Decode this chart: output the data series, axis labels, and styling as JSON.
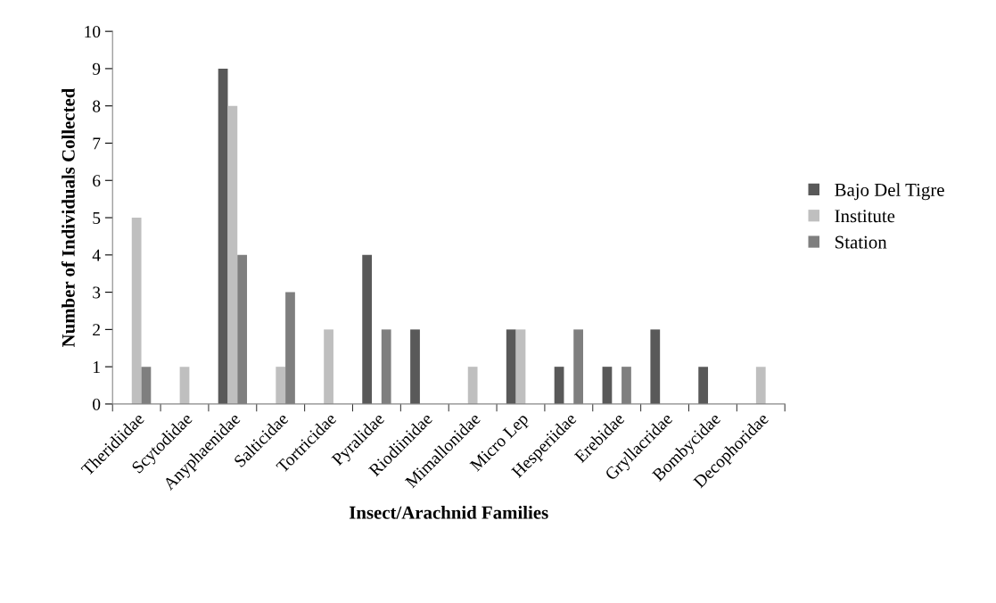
{
  "chart_data": {
    "type": "bar",
    "xlabel": "Insect/Arachnid Families",
    "ylabel": "Number of Individuals Collected",
    "categories": [
      "Theridiidae",
      "Scytodidae",
      "Anyphaenidae",
      "Salticidae",
      "Tortricidae",
      "Pyralidae",
      "Riodiinidae",
      "Mimallonidae",
      "Micro Lep",
      "Hesperiidae",
      "Erebidae",
      "Gryllacridae",
      "Bombycidae",
      "Decophoridae"
    ],
    "series": [
      {
        "name": "Bajo Del Tigre",
        "color": "#595959",
        "values": [
          0,
          0,
          9,
          0,
          0,
          4,
          2,
          0,
          2,
          1,
          1,
          2,
          1,
          0
        ]
      },
      {
        "name": "Institute",
        "color": "#bfbfbf",
        "values": [
          5,
          1,
          8,
          1,
          2,
          0,
          0,
          1,
          2,
          0,
          0,
          0,
          0,
          1
        ]
      },
      {
        "name": "Station",
        "color": "#7f7f7f",
        "values": [
          1,
          0,
          4,
          3,
          0,
          2,
          0,
          0,
          0,
          2,
          1,
          0,
          0,
          0
        ]
      }
    ],
    "ylim": [
      0,
      10
    ],
    "yticks": [
      0,
      1,
      2,
      3,
      4,
      5,
      6,
      7,
      8,
      9,
      10
    ],
    "grid": false,
    "legend": "right"
  }
}
